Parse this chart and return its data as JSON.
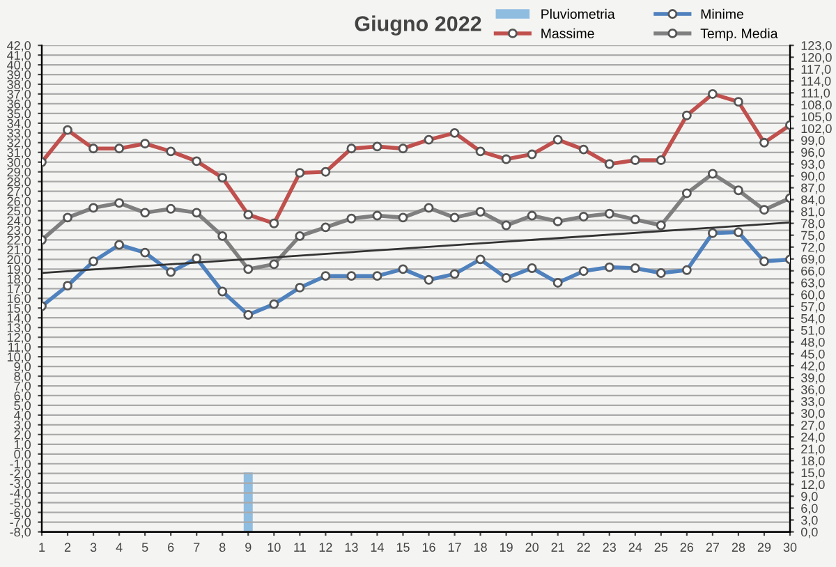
{
  "chart_data": {
    "type": "line",
    "title": "Giugno 2022",
    "x": [
      1,
      2,
      3,
      4,
      5,
      6,
      7,
      8,
      9,
      10,
      11,
      12,
      13,
      14,
      15,
      16,
      17,
      18,
      19,
      20,
      21,
      22,
      23,
      24,
      25,
      26,
      27,
      28,
      29,
      30
    ],
    "xlim": [
      1,
      30
    ],
    "xticks": [
      1,
      2,
      3,
      4,
      5,
      6,
      7,
      8,
      9,
      10,
      11,
      12,
      13,
      14,
      15,
      16,
      17,
      18,
      19,
      20,
      21,
      22,
      23,
      24,
      25,
      26,
      27,
      28,
      29,
      30
    ],
    "ylim": [
      -8,
      42
    ],
    "yticks": [
      {
        "value": -8,
        "label": "-8,0"
      },
      {
        "value": -7,
        "label": "-7,0"
      },
      {
        "value": -6,
        "label": "-6,0"
      },
      {
        "value": -5,
        "label": "-5,0"
      },
      {
        "value": -4,
        "label": "-4,0"
      },
      {
        "value": -3,
        "label": "-3,0"
      },
      {
        "value": -2,
        "label": "-2,0"
      },
      {
        "value": -1,
        "label": "-1,0"
      },
      {
        "value": 0,
        "label": "0,0"
      },
      {
        "value": 1,
        "label": "1,0"
      },
      {
        "value": 2,
        "label": "2,0"
      },
      {
        "value": 3,
        "label": "3,0"
      },
      {
        "value": 4,
        "label": "4,0"
      },
      {
        "value": 5,
        "label": "5,0"
      },
      {
        "value": 6,
        "label": "6,0"
      },
      {
        "value": 7,
        "label": "7,0"
      },
      {
        "value": 8,
        "label": "8,0"
      },
      {
        "value": 9,
        "label": "9,0"
      },
      {
        "value": 10,
        "label": "10,0"
      },
      {
        "value": 11,
        "label": "11,0"
      },
      {
        "value": 12,
        "label": "12,0"
      },
      {
        "value": 13,
        "label": "13,0"
      },
      {
        "value": 14,
        "label": "14,0"
      },
      {
        "value": 15,
        "label": "15,0"
      },
      {
        "value": 16,
        "label": "16,0"
      },
      {
        "value": 17,
        "label": "17,0"
      },
      {
        "value": 18,
        "label": "18,0"
      },
      {
        "value": 19,
        "label": "19,0"
      },
      {
        "value": 20,
        "label": "20,0"
      },
      {
        "value": 21,
        "label": "21,0"
      },
      {
        "value": 22,
        "label": "22,0"
      },
      {
        "value": 23,
        "label": "23,0"
      },
      {
        "value": 24,
        "label": "24,0"
      },
      {
        "value": 25,
        "label": "25,0"
      },
      {
        "value": 26,
        "label": "26,0"
      },
      {
        "value": 27,
        "label": "27,0"
      },
      {
        "value": 28,
        "label": "28,0"
      },
      {
        "value": 29,
        "label": "29,0"
      },
      {
        "value": 30,
        "label": "30,0"
      },
      {
        "value": 31,
        "label": "31,0"
      },
      {
        "value": 32,
        "label": "32,0"
      },
      {
        "value": 33,
        "label": "33,0"
      },
      {
        "value": 34,
        "label": "34,0"
      },
      {
        "value": 35,
        "label": "35,0"
      },
      {
        "value": 36,
        "label": "36,0"
      },
      {
        "value": 37,
        "label": "37,0"
      },
      {
        "value": 38,
        "label": "38,0"
      },
      {
        "value": 39,
        "label": "39,0"
      },
      {
        "value": 40,
        "label": "40,0"
      },
      {
        "value": 41,
        "label": "41,0"
      },
      {
        "value": 42,
        "label": "42,0"
      }
    ],
    "y2lim": [
      0,
      123
    ],
    "y2ticks": [
      {
        "value": 0,
        "label": "0,0"
      },
      {
        "value": 3,
        "label": "3,0"
      },
      {
        "value": 6,
        "label": "6,0"
      },
      {
        "value": 9,
        "label": "9,0"
      },
      {
        "value": 12,
        "label": "12,0"
      },
      {
        "value": 15,
        "label": "15,0"
      },
      {
        "value": 18,
        "label": "18,0"
      },
      {
        "value": 21,
        "label": "21,0"
      },
      {
        "value": 24,
        "label": "24,0"
      },
      {
        "value": 27,
        "label": "27,0"
      },
      {
        "value": 30,
        "label": "30,0"
      },
      {
        "value": 33,
        "label": "33,0"
      },
      {
        "value": 36,
        "label": "36,0"
      },
      {
        "value": 39,
        "label": "39,0"
      },
      {
        "value": 42,
        "label": "42,0"
      },
      {
        "value": 45,
        "label": "45,0"
      },
      {
        "value": 48,
        "label": "48,0"
      },
      {
        "value": 51,
        "label": "51,0"
      },
      {
        "value": 54,
        "label": "54,0"
      },
      {
        "value": 57,
        "label": "57,0"
      },
      {
        "value": 60,
        "label": "60,0"
      },
      {
        "value": 63,
        "label": "63,0"
      },
      {
        "value": 66,
        "label": "66,0"
      },
      {
        "value": 69,
        "label": "69,0"
      },
      {
        "value": 72,
        "label": "72,0"
      },
      {
        "value": 75,
        "label": "75,0"
      },
      {
        "value": 78,
        "label": "78,0"
      },
      {
        "value": 81,
        "label": "81,0"
      },
      {
        "value": 84,
        "label": "84,0"
      },
      {
        "value": 87,
        "label": "87,0"
      },
      {
        "value": 90,
        "label": "90,0"
      },
      {
        "value": 93,
        "label": "93,0"
      },
      {
        "value": 96,
        "label": "96,0"
      },
      {
        "value": 99,
        "label": "99,0"
      },
      {
        "value": 102,
        "label": "102,0"
      },
      {
        "value": 105,
        "label": "105,0"
      },
      {
        "value": 108,
        "label": "108,0"
      },
      {
        "value": 111,
        "label": "111,0"
      },
      {
        "value": 114,
        "label": "114,0"
      },
      {
        "value": 117,
        "label": "117,0"
      },
      {
        "value": 120,
        "label": "120,0"
      },
      {
        "value": 123,
        "label": "123,0"
      }
    ],
    "grid": "y",
    "legend": "top right",
    "marker": "circle",
    "line_style": "solid",
    "series": [
      {
        "name": "Pluviometria",
        "type": "bar",
        "axis": "y2",
        "color": "#8fbde0",
        "values": [
          null,
          null,
          null,
          null,
          null,
          null,
          null,
          null,
          15,
          null,
          null,
          null,
          null,
          null,
          null,
          null,
          null,
          null,
          null,
          null,
          null,
          null,
          null,
          null,
          null,
          null,
          null,
          null,
          null,
          null
        ]
      },
      {
        "name": "Massime",
        "color": "#c0504d",
        "values": [
          30.0,
          33.3,
          31.4,
          31.4,
          31.9,
          31.1,
          30.1,
          28.4,
          24.6,
          23.7,
          28.9,
          29.0,
          31.4,
          31.6,
          31.4,
          32.3,
          33.0,
          31.1,
          30.3,
          30.8,
          32.3,
          31.3,
          29.8,
          30.2,
          30.2,
          34.8,
          37.0,
          36.2,
          32.0,
          33.8
        ]
      },
      {
        "name": "Minime",
        "color": "#4f81bd",
        "values": [
          15.2,
          17.3,
          19.8,
          21.5,
          20.7,
          18.7,
          20.1,
          16.7,
          14.3,
          15.4,
          17.1,
          18.3,
          18.3,
          18.3,
          19.0,
          17.9,
          18.5,
          20.0,
          18.1,
          19.1,
          17.6,
          18.8,
          19.2,
          19.1,
          18.6,
          18.9,
          22.7,
          22.8,
          19.8,
          20.0
        ]
      },
      {
        "name": "Temp. Media",
        "color": "#7f7f7f",
        "values": [
          22.0,
          24.3,
          25.3,
          25.8,
          24.8,
          25.2,
          24.8,
          22.4,
          19.0,
          19.5,
          22.4,
          23.3,
          24.2,
          24.5,
          24.3,
          25.3,
          24.3,
          24.9,
          23.5,
          24.5,
          23.9,
          24.4,
          24.7,
          24.1,
          23.5,
          26.8,
          28.8,
          27.1,
          25.1,
          26.3
        ]
      },
      {
        "type": "line",
        "color": "#333333",
        "marker": "none",
        "x": [
          1,
          30
        ],
        "values": [
          18.6,
          23.8
        ]
      }
    ]
  }
}
